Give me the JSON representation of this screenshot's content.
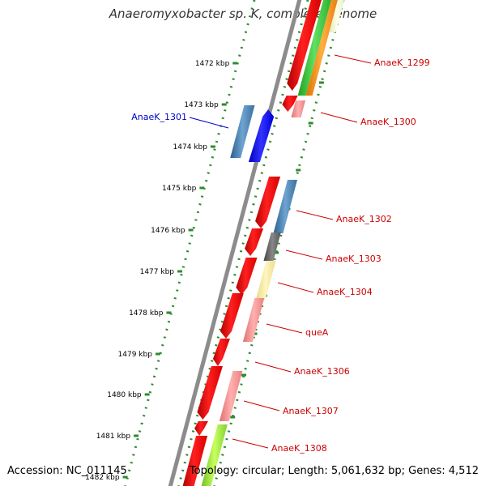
{
  "title": "Anaeromyxobacter sp. K, complete genome",
  "footer": {
    "accession": "Accession: NC_011145",
    "summary": "Topology: circular; Length: 5,061,632 bp; Genes: 4,512"
  },
  "colors": {
    "backbone": "#8c8c8c",
    "track_dots": "#2e8b2e",
    "label_red": "#cc0000",
    "label_blue": "#0000cc"
  },
  "ruler": [
    {
      "label": "1472 kbp"
    },
    {
      "label": "1473 kbp"
    },
    {
      "label": "1474 kbp"
    },
    {
      "label": "1475 kbp"
    },
    {
      "label": "1476 kbp"
    },
    {
      "label": "1477 kbp"
    },
    {
      "label": "1478 kbp"
    },
    {
      "label": "1479 kbp"
    },
    {
      "label": "1480 kbp"
    },
    {
      "label": "1481 kbp"
    },
    {
      "label": "1482 kbp"
    }
  ],
  "gene_labels": [
    {
      "text": "AnaeK_1299",
      "color": "#cc0000"
    },
    {
      "text": "AnaeK_1300",
      "color": "#cc0000"
    },
    {
      "text": "AnaeK_1301",
      "color": "#0000cc"
    },
    {
      "text": "AnaeK_1302",
      "color": "#cc0000"
    },
    {
      "text": "AnaeK_1303",
      "color": "#cc0000"
    },
    {
      "text": "AnaeK_1304",
      "color": "#cc0000"
    },
    {
      "text": "queA",
      "color": "#cc0000"
    },
    {
      "text": "AnaeK_1306",
      "color": "#cc0000"
    },
    {
      "text": "AnaeK_1307",
      "color": "#cc0000"
    },
    {
      "text": "AnaeK_1308",
      "color": "#cc0000"
    }
  ]
}
